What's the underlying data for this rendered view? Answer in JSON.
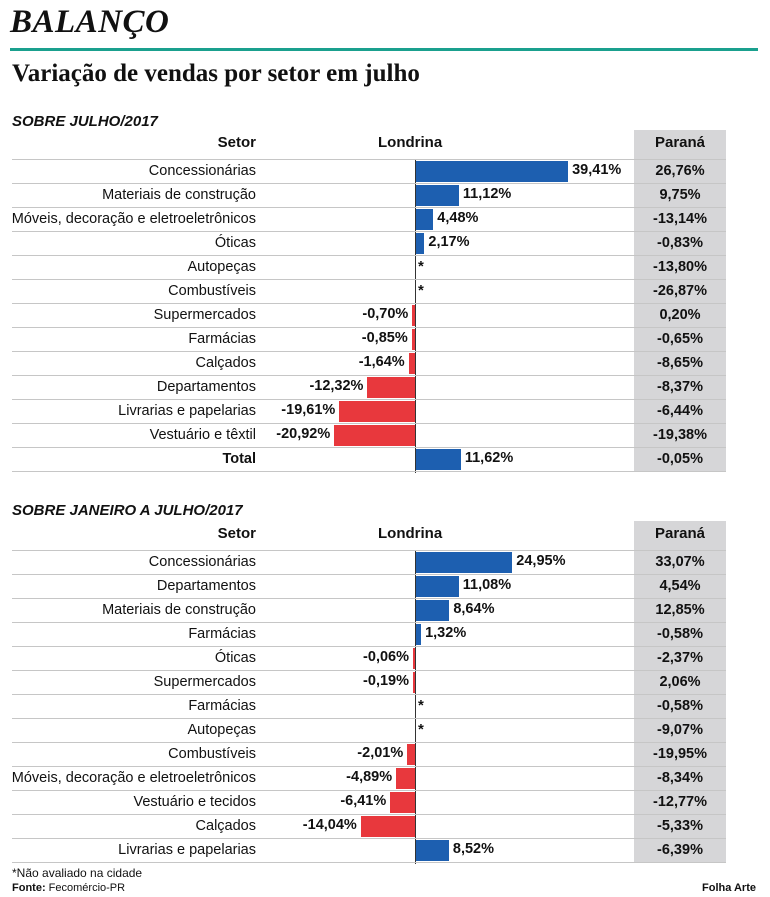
{
  "header": {
    "kicker": "BALANÇO",
    "title": "Variação de vendas por setor em julho"
  },
  "colors": {
    "positive": "#1d5fb0",
    "negative": "#e8383d",
    "accent": "#1aa08e",
    "parana_bg": "#d6d6d8"
  },
  "chart_data": [
    {
      "type": "bar",
      "title": "SOBRE JULHO/2017",
      "columns": {
        "sector": "Setor",
        "city": "Londrina",
        "state": "Paraná"
      },
      "categories": [
        "Concessionárias",
        "Materiais de construção",
        "Móveis, decoração e eletroeletrônicos",
        "Óticas",
        "Autopeças",
        "Combustíveis",
        "Supermercados",
        "Farmácias",
        "Calçados",
        "Departamentos",
        "Livrarias e papelarias",
        "Vestuário e têxtil",
        "Total"
      ],
      "series": [
        {
          "name": "Londrina",
          "values": [
            39.41,
            11.12,
            4.48,
            2.17,
            null,
            null,
            -0.7,
            -0.85,
            -1.64,
            -12.32,
            -19.61,
            -20.92,
            11.62
          ],
          "labels": [
            "39,41%",
            "11,12%",
            "4,48%",
            "2,17%",
            "*",
            "*",
            "-0,70%",
            "-0,85%",
            "-1,64%",
            "-12,32%",
            "-19,61%",
            "-20,92%",
            "11,62%"
          ]
        },
        {
          "name": "Paraná",
          "values": [
            26.76,
            9.75,
            -13.14,
            -0.83,
            -13.8,
            -26.87,
            0.2,
            -0.65,
            -8.65,
            -8.37,
            -6.44,
            -19.38,
            -0.05
          ],
          "labels": [
            "26,76%",
            "9,75%",
            "-13,14%",
            "-0,83%",
            "-13,80%",
            "-26,87%",
            "0,20%",
            "-0,65%",
            "-8,65%",
            "-8,37%",
            "-6,44%",
            "-19,38%",
            "-0,05%"
          ]
        }
      ]
    },
    {
      "type": "bar",
      "title": "SOBRE JANEIRO A JULHO/2017",
      "columns": {
        "sector": "Setor",
        "city": "Londrina",
        "state": "Paraná"
      },
      "categories": [
        "Concessionárias",
        "Departamentos",
        "Materiais de construção",
        "Farmácias",
        "Óticas",
        "Supermercados",
        "Farmácias",
        "Autopeças",
        "Combustíveis",
        "Móveis, decoração e eletroeletrônicos",
        "Vestuário e tecidos",
        "Calçados",
        "Livrarias e papelarias"
      ],
      "series": [
        {
          "name": "Londrina",
          "values": [
            24.95,
            11.08,
            8.64,
            1.32,
            -0.06,
            -0.19,
            null,
            null,
            -2.01,
            -4.89,
            -6.41,
            -14.04,
            8.52
          ],
          "labels": [
            "24,95%",
            "11,08%",
            "8,64%",
            "1,32%",
            "-0,06%",
            "-0,19%",
            "*",
            "*",
            "-2,01%",
            "-4,89%",
            "-6,41%",
            "-14,04%",
            "8,52%"
          ]
        },
        {
          "name": "Paraná",
          "values": [
            33.07,
            4.54,
            12.85,
            -0.58,
            -2.37,
            2.06,
            -0.58,
            -9.07,
            -19.95,
            -8.34,
            -12.77,
            -5.33,
            -6.39
          ],
          "labels": [
            "33,07%",
            "4,54%",
            "12,85%",
            "-0,58%",
            "-2,37%",
            "2,06%",
            "-0,58%",
            "-9,07%",
            "-19,95%",
            "-8,34%",
            "-12,77%",
            "-5,33%",
            "-6,39%"
          ]
        }
      ]
    }
  ],
  "footer": {
    "note": "*Não avaliado na cidade",
    "source_label": "Fonte:",
    "source": "Fecomércio-PR",
    "credit": "Folha Arte"
  }
}
